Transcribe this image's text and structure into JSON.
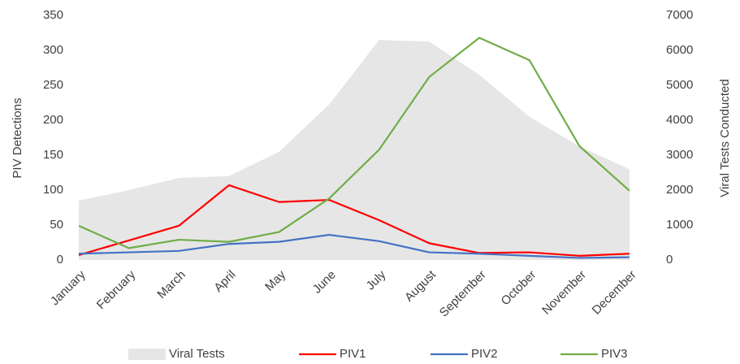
{
  "chart_data": {
    "type": "combo",
    "categories": [
      "January",
      "February",
      "March",
      "April",
      "May",
      "June",
      "July",
      "August",
      "September",
      "October",
      "November",
      "December"
    ],
    "series": [
      {
        "name": "Viral Tests",
        "type": "area",
        "axis": "y2",
        "color": "#e6e6e6",
        "values": [
          1700,
          2000,
          2350,
          2400,
          3100,
          4450,
          6300,
          6250,
          5300,
          4100,
          3250,
          2600
        ]
      },
      {
        "name": "PIV1",
        "type": "line",
        "color": "#ff0000",
        "values": [
          7,
          28,
          49,
          107,
          83,
          86,
          57,
          24,
          10,
          11,
          6,
          9
        ]
      },
      {
        "name": "PIV2",
        "type": "line",
        "color": "#4472c4",
        "values": [
          9,
          11,
          13,
          23,
          26,
          36,
          27,
          11,
          9,
          6,
          3,
          4
        ]
      },
      {
        "name": "PIV3",
        "type": "line",
        "color": "#70ad47",
        "values": [
          49,
          17,
          29,
          26,
          40,
          88,
          158,
          262,
          318,
          286,
          163,
          99
        ]
      }
    ],
    "y_label": "PIV Detections",
    "y2_label": "Viral Tests Conducted",
    "ylim": [
      0,
      350
    ],
    "yticks": [
      0,
      50,
      100,
      150,
      200,
      250,
      300,
      350
    ],
    "y2lim": [
      0,
      7000
    ],
    "y2ticks": [
      0,
      1000,
      2000,
      3000,
      4000,
      5000,
      6000,
      7000
    ],
    "grid": false,
    "legend": "bottom"
  }
}
